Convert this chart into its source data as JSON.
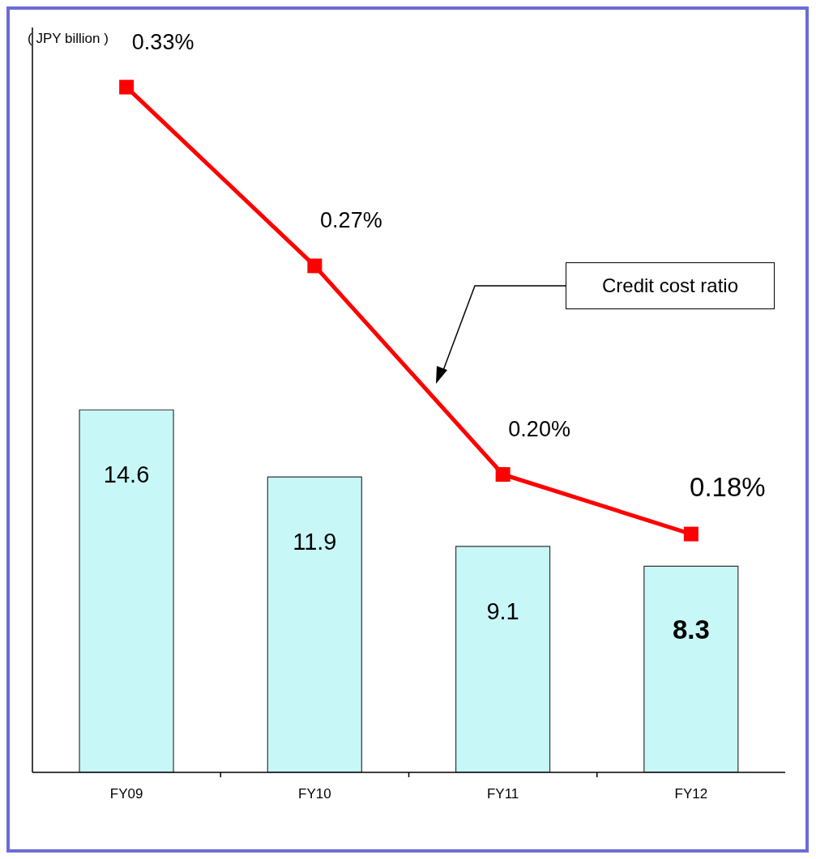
{
  "chart_data": {
    "type": "bar",
    "ylabel": "( JPY billion )",
    "categories": [
      "FY09",
      "FY10",
      "FY11",
      "FY12"
    ],
    "series": [
      {
        "color": "#c8f7f7",
        "values": [
          14.6,
          11.9,
          9.1,
          8.3
        ]
      },
      {
        "type": "line",
        "name": "Credit cost ratio",
        "color": "#ff0000",
        "axis": "y2",
        "values": [
          0.33,
          0.27,
          0.2,
          0.18
        ],
        "value_labels": [
          "0.33%",
          "0.27%",
          "0.20%",
          "0.18%"
        ]
      }
    ],
    "ylim": [
      0,
      30
    ],
    "y2lim": [
      0.1,
      0.35
    ],
    "tick_labels": "x",
    "data_labels": true,
    "marker": "square",
    "line_style": "solid"
  }
}
